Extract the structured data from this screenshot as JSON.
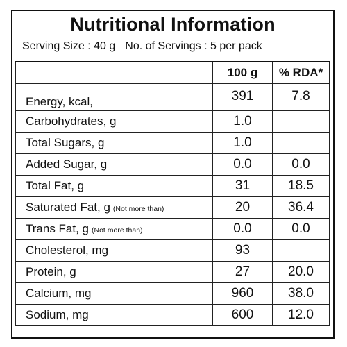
{
  "title": "Nutritional Information",
  "serving": {
    "size": "Serving Size : 40 g",
    "count": "No. of Servings : 5 per pack"
  },
  "columns": {
    "per100": "100 g",
    "rda": "% RDA*"
  },
  "rows": [
    {
      "name": "Energy, kcal,",
      "note": "",
      "value": "391",
      "rda": "7.8"
    },
    {
      "name": "Carbohydrates, g",
      "note": "",
      "value": "1.0",
      "rda": ""
    },
    {
      "name": "Total Sugars, g",
      "note": "",
      "value": "1.0",
      "rda": ""
    },
    {
      "name": "Added Sugar, g",
      "note": "",
      "value": "0.0",
      "rda": "0.0"
    },
    {
      "name": "Total Fat, g",
      "note": "",
      "value": "31",
      "rda": "18.5"
    },
    {
      "name": "Saturated Fat, g",
      "note": "(Not more than)",
      "value": "20",
      "rda": "36.4"
    },
    {
      "name": "Trans Fat, g",
      "note": "(Not more than)",
      "value": "0.0",
      "rda": "0.0"
    },
    {
      "name": "Cholesterol, mg",
      "note": "",
      "value": "93",
      "rda": ""
    },
    {
      "name": "Protein, g",
      "note": "",
      "value": "27",
      "rda": "20.0"
    },
    {
      "name": "Calcium, mg",
      "note": "",
      "value": "960",
      "rda": "38.0"
    },
    {
      "name": "Sodium, mg",
      "note": "",
      "value": "600",
      "rda": "12.0"
    }
  ]
}
